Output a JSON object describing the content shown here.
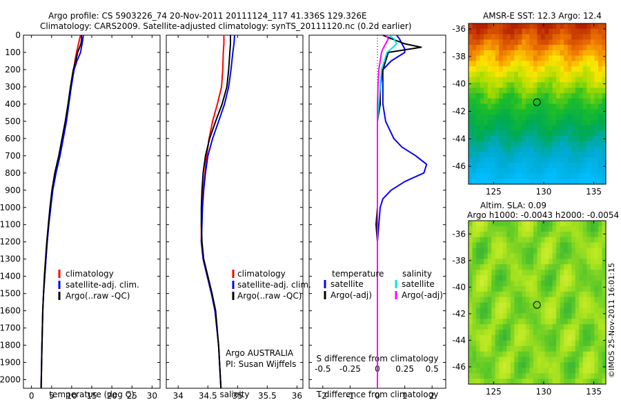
{
  "header": {
    "line1": "Argo profile: CS 5903226_74 20-Nov-2011 20111124_117 41.336S 129.326E",
    "line2": "Climatology: CARS2009. Satellite-adjusted climatology: synTS_20111120.nc (0.2d earlier)"
  },
  "colors": {
    "climatology": "#ff0000",
    "satellite": "#0000ff",
    "argo": "#000000",
    "salinity_satellite": "#00e5e5",
    "salinity_argo": "#ff00ff"
  },
  "chart_data": [
    {
      "type": "line",
      "name": "temperature-profile",
      "xlabel": "temperature (deg C)",
      "xlim": [
        -2,
        32
      ],
      "ylim": [
        2050,
        0
      ],
      "xticks": [
        0,
        5,
        10,
        15,
        20,
        25,
        30
      ],
      "yticks": [
        0,
        100,
        200,
        300,
        400,
        500,
        600,
        700,
        800,
        900,
        1000,
        1100,
        1200,
        1300,
        1400,
        1500,
        1600,
        1700,
        1800,
        1900,
        2000
      ],
      "legend": [
        "climatology",
        "satellite-adj. clim.",
        "Argo(..raw -QC)"
      ],
      "series": [
        {
          "name": "climatology",
          "color": "#ff0000",
          "depth": [
            0,
            20,
            50,
            100,
            150,
            200,
            300,
            400,
            500,
            600,
            700,
            800,
            900,
            1000,
            1100,
            1200,
            1300,
            1400,
            1500,
            1600,
            1800,
            2050
          ],
          "values": [
            12.2,
            12.0,
            11.7,
            11.2,
            10.8,
            10.5,
            9.8,
            9.2,
            8.6,
            7.8,
            7.0,
            6.0,
            5.2,
            4.7,
            4.3,
            3.9,
            3.6,
            3.3,
            3.0,
            2.8,
            2.6,
            2.4
          ]
        },
        {
          "name": "satellite-adj. clim.",
          "color": "#0000ff",
          "depth": [
            0,
            20,
            50,
            100,
            150,
            200,
            300,
            400,
            500,
            600,
            700,
            800,
            900,
            1000,
            1100,
            1200,
            1300,
            1400,
            1500,
            1600,
            1800,
            2050
          ],
          "values": [
            12.9,
            12.8,
            12.6,
            12.2,
            11.3,
            10.6,
            9.9,
            9.3,
            8.7,
            7.9,
            7.1,
            6.1,
            5.3,
            4.8,
            4.3,
            3.9,
            3.6,
            3.3,
            3.0,
            2.8,
            2.6,
            2.4
          ]
        },
        {
          "name": "Argo(..raw -QC)",
          "color": "#000000",
          "depth": [
            0,
            20,
            50,
            100,
            150,
            200,
            300,
            400,
            500,
            600,
            700,
            800,
            900,
            1000,
            1100,
            1200,
            1300,
            1400,
            1500,
            1600,
            1800,
            2050
          ],
          "values": [
            12.4,
            12.5,
            12.3,
            11.5,
            11.0,
            10.4,
            9.7,
            9.1,
            8.4,
            7.6,
            6.8,
            5.8,
            5.1,
            4.6,
            4.2,
            3.8,
            3.5,
            3.2,
            3.0,
            2.8,
            2.6,
            2.4
          ]
        }
      ]
    },
    {
      "type": "line",
      "name": "salinity-profile",
      "xlabel": "salinity",
      "xlim": [
        33.8,
        36.1
      ],
      "ylim": [
        2050,
        0
      ],
      "xticks": [
        34,
        34.5,
        35,
        35.5,
        36
      ],
      "legend": [
        "climatology",
        "satellite-adj. clim.",
        "Argo(..raw -QC)"
      ],
      "annotation": [
        "Argo AUSTRALIA",
        "PI: Susan Wijffels"
      ],
      "series": [
        {
          "name": "climatology",
          "color": "#ff0000",
          "depth": [
            0,
            50,
            100,
            200,
            300,
            400,
            500,
            600,
            700,
            800,
            900,
            1000,
            1100,
            1200,
            1300,
            1400,
            1500,
            1600,
            1800,
            2050
          ],
          "values": [
            34.77,
            34.77,
            34.76,
            34.75,
            34.73,
            34.66,
            34.58,
            34.52,
            34.48,
            34.45,
            34.42,
            34.4,
            34.39,
            34.39,
            34.42,
            34.49,
            34.56,
            34.62,
            34.68,
            34.72
          ]
        },
        {
          "name": "satellite-adj. clim.",
          "color": "#0000ff",
          "depth": [
            0,
            50,
            100,
            200,
            300,
            400,
            500,
            600,
            700,
            800,
            900,
            1000,
            1100,
            1200,
            1300,
            1400,
            1500,
            1600,
            1800,
            2050
          ],
          "values": [
            34.95,
            34.94,
            34.92,
            34.89,
            34.85,
            34.78,
            34.68,
            34.58,
            34.5,
            34.46,
            34.43,
            34.41,
            34.4,
            34.39,
            34.42,
            34.49,
            34.56,
            34.62,
            34.68,
            34.72
          ]
        },
        {
          "name": "Argo(..raw -QC)",
          "color": "#000000",
          "depth": [
            0,
            50,
            100,
            200,
            300,
            400,
            500,
            600,
            700,
            800,
            900,
            1000,
            1100,
            1200,
            1300,
            1400,
            1500,
            1600,
            1800,
            2050
          ],
          "values": [
            34.88,
            34.88,
            34.87,
            34.85,
            34.82,
            34.74,
            34.63,
            34.53,
            34.46,
            34.42,
            34.4,
            34.39,
            34.39,
            34.4,
            34.43,
            34.5,
            34.57,
            34.63,
            34.68,
            34.72
          ]
        }
      ]
    },
    {
      "type": "line",
      "name": "difference-profile",
      "xlabel": "T difference from climatology",
      "xlabel_top": "S difference from climatology",
      "xlim": [
        -2.5,
        2.5
      ],
      "ylim": [
        2050,
        0
      ],
      "xticks_bottom": [
        -2,
        -1,
        0,
        1,
        2
      ],
      "xticks_top": [
        "-0.5",
        "-0.25",
        "0",
        "0.25",
        "0.5"
      ],
      "legend": {
        "temperature_heading": "temperature",
        "salinity_heading": "salinity",
        "satellite": "satellite",
        "argo": "Argo(-adj)"
      },
      "series": [
        {
          "name": "temperature satellite",
          "color": "#0000ff",
          "depth": [
            0,
            20,
            50,
            80,
            100,
            150,
            200,
            300,
            400,
            500,
            600,
            650,
            700,
            750,
            800,
            850,
            900,
            950,
            1000,
            1100,
            1200,
            1400,
            1600,
            1800,
            2050
          ],
          "values": [
            0.7,
            0.8,
            0.9,
            1.0,
            1.0,
            0.5,
            0.2,
            0.2,
            0.2,
            0.3,
            0.6,
            0.9,
            1.4,
            1.8,
            1.7,
            1.0,
            0.5,
            0.2,
            0.1,
            0.05,
            0.0,
            0.0,
            0.0,
            0.0,
            0.0
          ]
        },
        {
          "name": "temperature Argo(-adj)",
          "color": "#000000",
          "depth": [
            0,
            20,
            50,
            70,
            90,
            100,
            150,
            200,
            300,
            400,
            500,
            600,
            800,
            900,
            1000,
            1100,
            1200,
            1400,
            1600,
            1800,
            2050
          ],
          "values": [
            0.2,
            0.5,
            1.0,
            1.6,
            0.8,
            0.4,
            0.3,
            0.2,
            0.1,
            0.1,
            0.0,
            0.0,
            0.0,
            0.0,
            0.0,
            -0.05,
            0.0,
            0.0,
            0.0,
            0.0,
            0.0
          ]
        },
        {
          "name": "salinity satellite",
          "color": "#00e5e5",
          "depth": [
            0,
            20,
            50,
            80,
            100,
            150,
            200,
            300,
            400,
            500,
            600,
            800,
            1000,
            1200,
            1400,
            1600,
            1800,
            2050
          ],
          "values": [
            0.4,
            0.6,
            0.7,
            0.5,
            0.35,
            0.25,
            0.15,
            0.1,
            0.05,
            0.0,
            0.0,
            0.0,
            0.0,
            0.0,
            0.0,
            0.0,
            0.0,
            0.0
          ]
        },
        {
          "name": "salinity Argo(-adj)",
          "color": "#ff00ff",
          "depth": [
            0,
            20,
            50,
            80,
            100,
            150,
            200,
            300,
            400,
            500,
            600,
            800,
            1000,
            1200,
            1400,
            1600,
            1800,
            2050
          ],
          "values": [
            0.3,
            0.4,
            0.3,
            0.2,
            0.15,
            0.1,
            0.05,
            0.02,
            0.0,
            0.0,
            0.0,
            0.0,
            0.0,
            0.0,
            0.0,
            0.0,
            0.0,
            0.0
          ]
        }
      ]
    },
    {
      "type": "heatmap",
      "name": "sst-map",
      "title": "AMSR-E SST: 12.3 Argo: 12.4",
      "xlim": [
        122.5,
        136.2
      ],
      "ylim": [
        -47.3,
        -35.6
      ],
      "xticks": [
        125,
        130,
        135
      ],
      "yticks": [
        -36,
        -38,
        -40,
        -42,
        -44,
        -46
      ],
      "marker": {
        "lon": 129.326,
        "lat": -41.336
      }
    },
    {
      "type": "heatmap",
      "name": "sla-map",
      "title": "Altim. SLA: 0.09",
      "subtitle": "Argo h1000: -0.0043 h2000: -0.0054",
      "xlim": [
        122.5,
        136.2
      ],
      "ylim": [
        -47.3,
        -35.0
      ],
      "xticks": [
        125,
        130,
        135
      ],
      "yticks": [
        -36,
        -38,
        -40,
        -42,
        -44,
        -46
      ],
      "marker": {
        "lon": 129.326,
        "lat": -41.336
      }
    }
  ],
  "footer": {
    "stamp": "©IMOS 25-Nov-2011 16:01:15"
  }
}
